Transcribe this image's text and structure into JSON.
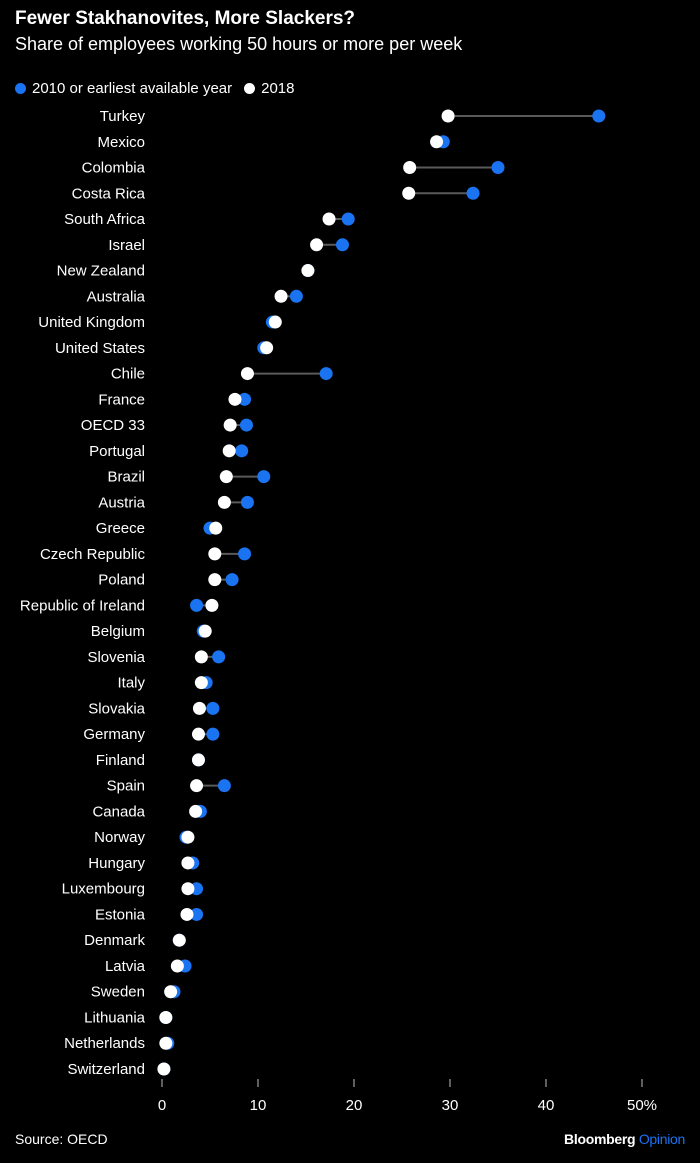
{
  "chart_data": {
    "type": "dumbbell",
    "title": "Fewer Stakhanovites, More Slackers?",
    "subtitle": "Share of employees working 50 hours or more per week",
    "legend": [
      {
        "name": "2010 or earliest available year",
        "color": "#1a73f0"
      },
      {
        "name": "2018",
        "color": "#ffffff"
      }
    ],
    "legend_placement": "top-left",
    "xlim": [
      0,
      50
    ],
    "xticks": [
      0,
      10,
      20,
      30,
      40,
      50
    ],
    "xtick_labels": [
      "0",
      "10",
      "20",
      "30",
      "40",
      "50%"
    ],
    "grid": false,
    "categories": [
      "Turkey",
      "Mexico",
      "Colombia",
      "Costa Rica",
      "South Africa",
      "Israel",
      "New Zealand",
      "Australia",
      "United Kingdom",
      "United States",
      "Chile",
      "France",
      "OECD 33",
      "Portugal",
      "Brazil",
      "Austria",
      "Greece",
      "Czech Republic",
      "Poland",
      "Republic of Ireland",
      "Belgium",
      "Slovenia",
      "Italy",
      "Slovakia",
      "Germany",
      "Finland",
      "Spain",
      "Canada",
      "Norway",
      "Hungary",
      "Luxembourg",
      "Estonia",
      "Denmark",
      "Latvia",
      "Sweden",
      "Lithuania",
      "Netherlands",
      "Switzerland"
    ],
    "series": [
      {
        "name": "2010 or earliest available year",
        "values": [
          45.5,
          29.3,
          35.0,
          32.4,
          19.4,
          18.8,
          15.2,
          14.0,
          11.5,
          10.6,
          17.1,
          8.6,
          8.8,
          8.3,
          10.6,
          8.9,
          5.0,
          8.6,
          7.3,
          3.6,
          4.3,
          5.9,
          4.6,
          5.3,
          5.3,
          3.8,
          6.5,
          4.0,
          2.5,
          3.2,
          3.6,
          3.6,
          1.8,
          2.4,
          1.25,
          0.4,
          0.6,
          0.2
        ]
      },
      {
        "name": "2018",
        "values": [
          29.8,
          28.6,
          25.8,
          25.7,
          17.4,
          16.1,
          15.2,
          12.4,
          11.8,
          10.9,
          8.9,
          7.6,
          7.1,
          7.0,
          6.7,
          6.5,
          5.6,
          5.5,
          5.5,
          5.2,
          4.5,
          4.1,
          4.1,
          3.9,
          3.8,
          3.8,
          3.6,
          3.5,
          2.7,
          2.7,
          2.7,
          2.6,
          1.8,
          1.6,
          0.9,
          0.4,
          0.4,
          0.2
        ]
      }
    ],
    "colors": {
      "line": "#5a5a5a",
      "background": "#000000"
    }
  },
  "footer": {
    "source": "Source: OECD",
    "brand": "Bloomberg",
    "brand_accent": "Opinion"
  }
}
